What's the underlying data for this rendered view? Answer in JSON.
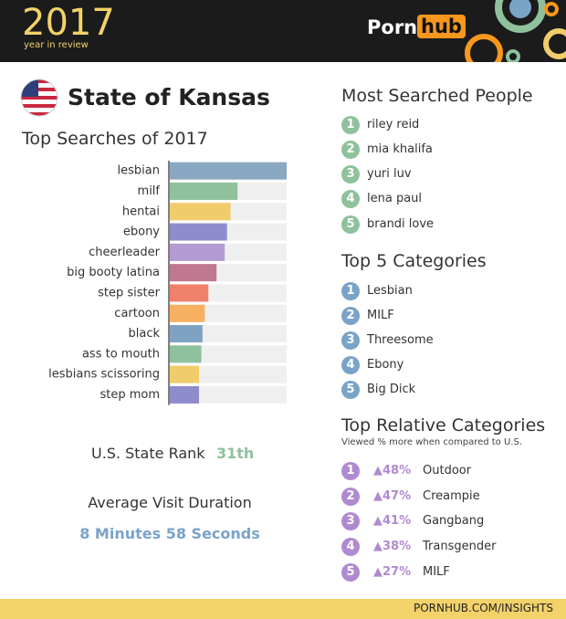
{
  "header": {
    "year": "2017",
    "subtitle": "year in review",
    "logo_left": "Porn",
    "logo_right": "hub"
  },
  "state_title": "State of Kansas",
  "chart_data": {
    "type": "bar",
    "orientation": "horizontal",
    "title": "Top Searches of 2017",
    "categories": [
      "lesbian",
      "milf",
      "hentai",
      "ebony",
      "cheerleader",
      "big booty latina",
      "step sister",
      "cartoon",
      "black",
      "ass to mouth",
      "lesbians scissoring",
      "step mom"
    ],
    "values": [
      100,
      58,
      52,
      49,
      47,
      40,
      33,
      30,
      28,
      27,
      25,
      25
    ],
    "colors": [
      "#8aa8c2",
      "#8fc19c",
      "#f0cc6a",
      "#8e8ccc",
      "#b49ad2",
      "#c07890",
      "#ef8069",
      "#f7b062",
      "#7fa2c2",
      "#8fc19c",
      "#f0cc6a",
      "#8e8ccc"
    ]
  },
  "rank": {
    "label": "U.S. State Rank",
    "value": "31th"
  },
  "duration": {
    "label": "Average Visit Duration",
    "value": "8 Minutes 58 Seconds"
  },
  "people": {
    "title": "Most Searched People",
    "items": [
      {
        "rank": "1",
        "name": "riley reid"
      },
      {
        "rank": "2",
        "name": "mia khalifa"
      },
      {
        "rank": "3",
        "name": "yuri luv"
      },
      {
        "rank": "4",
        "name": "lena paul"
      },
      {
        "rank": "5",
        "name": "brandi love"
      }
    ]
  },
  "categories": {
    "title": "Top 5 Categories",
    "items": [
      {
        "rank": "1",
        "name": "Lesbian"
      },
      {
        "rank": "2",
        "name": "MILF"
      },
      {
        "rank": "3",
        "name": "Threesome"
      },
      {
        "rank": "4",
        "name": "Ebony"
      },
      {
        "rank": "5",
        "name": "Big Dick"
      }
    ]
  },
  "relative": {
    "title": "Top Relative Categories",
    "subtitle": "Viewed % more when compared to U.S.",
    "items": [
      {
        "rank": "1",
        "change": "▲48%",
        "name": "Outdoor"
      },
      {
        "rank": "2",
        "change": "▲47%",
        "name": "Creampie"
      },
      {
        "rank": "3",
        "change": "▲41%",
        "name": "Gangbang"
      },
      {
        "rank": "4",
        "change": "▲38%",
        "name": "Transgender"
      },
      {
        "rank": "5",
        "change": "▲27%",
        "name": "MILF"
      }
    ]
  },
  "footer": "PORNHUB.COM/INSIGHTS"
}
